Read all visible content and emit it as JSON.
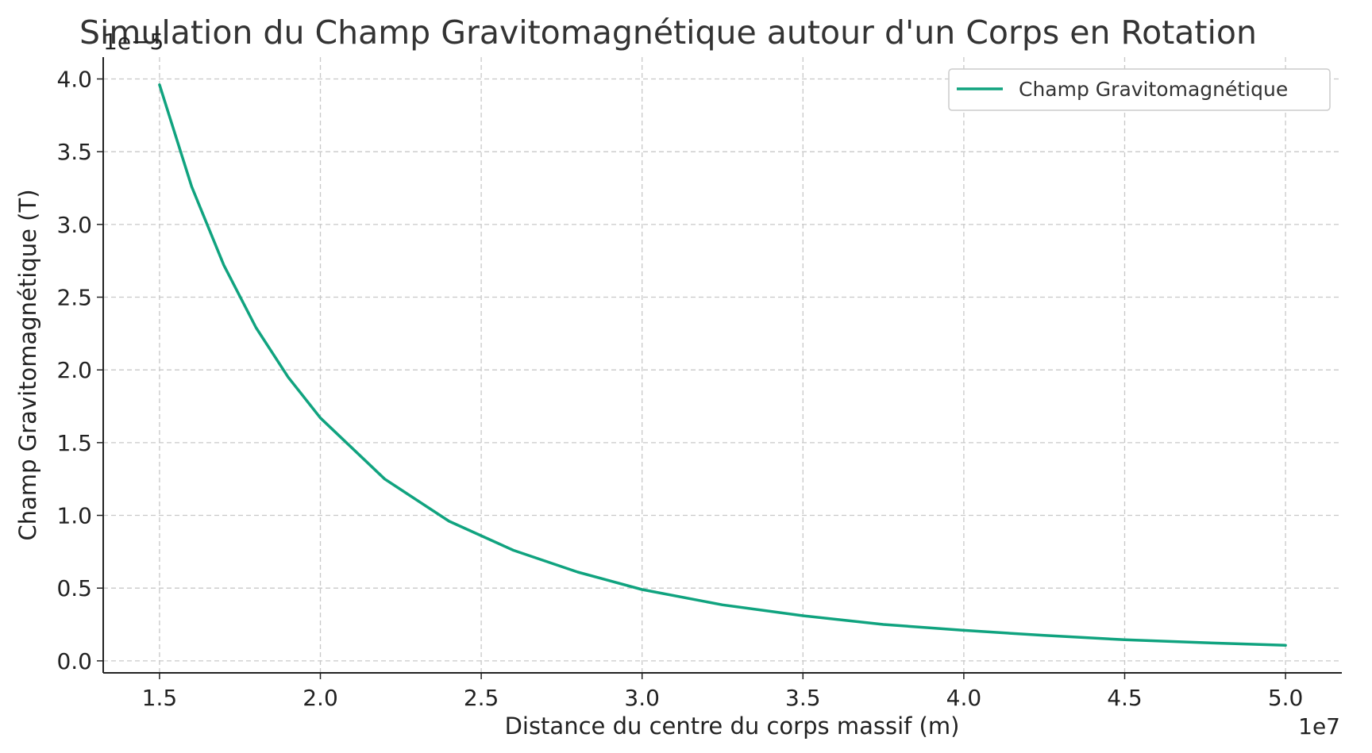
{
  "chart_data": {
    "type": "line",
    "title": "Simulation du Champ Gravitomagnétique autour d'un Corps en Rotation",
    "xlabel": "Distance du centre du corps massif (m)",
    "ylabel": "Champ Gravitomagnétique (T)",
    "x_offset_label": "1e7",
    "y_offset_label": "1e−5",
    "xlim": [
      1.325,
      5.175
    ],
    "ylim": [
      -0.0825,
      4.15
    ],
    "x_ticks": [
      1.5,
      2.0,
      2.5,
      3.0,
      3.5,
      4.0,
      4.5,
      5.0
    ],
    "y_ticks": [
      0.0,
      0.5,
      1.0,
      1.5,
      2.0,
      2.5,
      3.0,
      3.5,
      4.0
    ],
    "x_tick_labels": [
      "1.5",
      "2.0",
      "2.5",
      "3.0",
      "3.5",
      "4.0",
      "4.5",
      "5.0"
    ],
    "y_tick_labels": [
      "0.0",
      "0.5",
      "1.0",
      "1.5",
      "2.0",
      "2.5",
      "3.0",
      "3.5",
      "4.0"
    ],
    "grid": true,
    "legend_position": "top-right",
    "series": [
      {
        "name": "Champ Gravitomagnétique",
        "color": "#10a37f",
        "x": [
          1.5,
          1.6,
          1.7,
          1.8,
          1.9,
          2.0,
          2.2,
          2.4,
          2.6,
          2.8,
          3.0,
          3.25,
          3.5,
          3.75,
          4.0,
          4.25,
          4.5,
          4.75,
          5.0
        ],
        "values": [
          3.96,
          3.26,
          2.72,
          2.29,
          1.95,
          1.67,
          1.25,
          0.96,
          0.76,
          0.61,
          0.49,
          0.385,
          0.31,
          0.25,
          0.21,
          0.175,
          0.145,
          0.125,
          0.107
        ]
      }
    ]
  }
}
